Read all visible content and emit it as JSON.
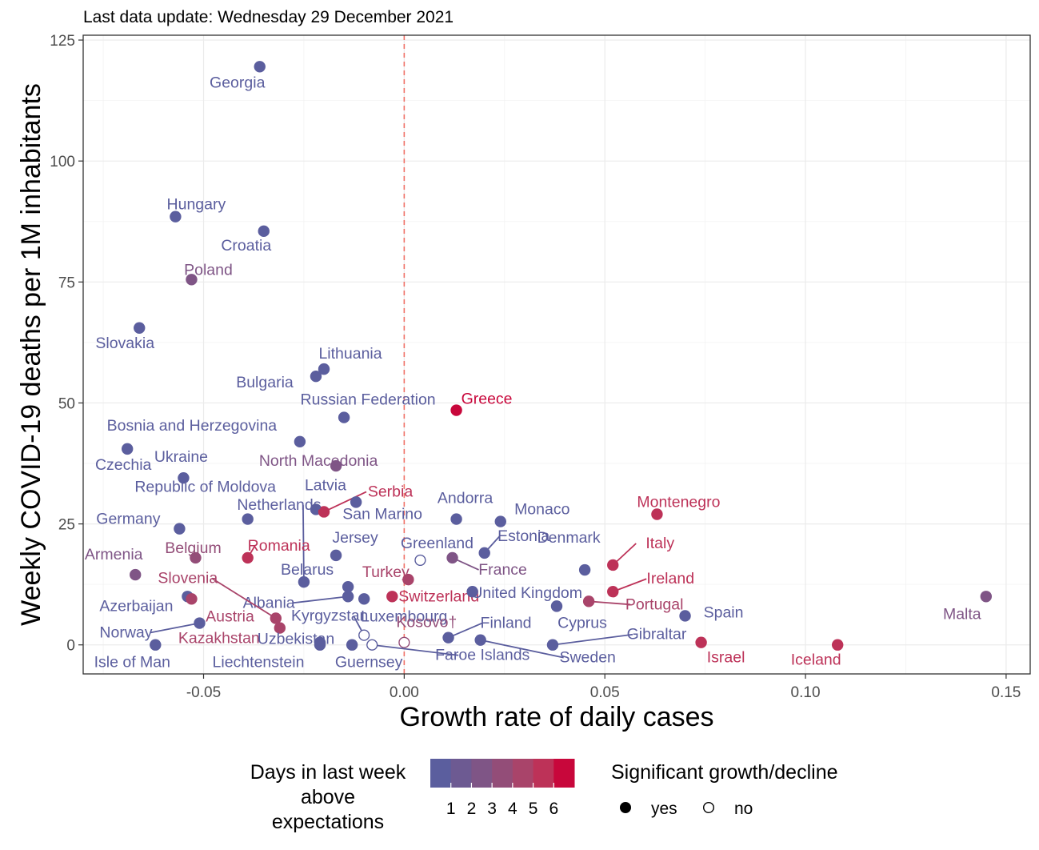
{
  "update_text": "Last data update: Wednesday 29 December 2021",
  "colors": {
    "scale": [
      "#5b5e9e",
      "#6d5a92",
      "#7f5586",
      "#934d78",
      "#a9446a",
      "#bd3258",
      "#c8073b"
    ],
    "reference_line": "#f07167"
  },
  "legend": {
    "color_title": [
      "Days in last week",
      "above",
      "expectations"
    ],
    "color_ticks": [
      "1",
      "2",
      "3",
      "4",
      "5",
      "6"
    ],
    "shape_title": "Significant growth/decline",
    "shape_items": [
      {
        "label": "yes",
        "filled": true
      },
      {
        "label": "no",
        "filled": false
      }
    ]
  },
  "chart_data": {
    "type": "scatter",
    "xlabel": "Growth rate of daily cases",
    "ylabel": "Weekly COVID-19 deaths per 1M inhabitants",
    "xlim": [
      -0.08,
      0.156
    ],
    "ylim": [
      -6,
      126
    ],
    "x_ticks": [
      -0.05,
      0.0,
      0.05,
      0.1,
      0.15
    ],
    "x_tick_labels": [
      "-0.05",
      "0.00",
      "0.05",
      "0.10",
      "0.15"
    ],
    "y_ticks": [
      0,
      25,
      50,
      75,
      100,
      125
    ],
    "y_tick_labels": [
      "0",
      "25",
      "50",
      "75",
      "100",
      "125"
    ],
    "reference_x": 0,
    "grid": true,
    "points": [
      {
        "name": "Georgia",
        "x": -0.036,
        "y": 119.5,
        "days": 0,
        "sig": true
      },
      {
        "name": "Hungary",
        "x": -0.057,
        "y": 88.5,
        "days": 0,
        "sig": true
      },
      {
        "name": "Croatia",
        "x": -0.035,
        "y": 85.5,
        "days": 0,
        "sig": true
      },
      {
        "name": "Poland",
        "x": -0.053,
        "y": 75.5,
        "days": 2,
        "sig": true
      },
      {
        "name": "Slovakia",
        "x": -0.066,
        "y": 65.5,
        "days": 0,
        "sig": true
      },
      {
        "name": "Lithuania",
        "x": -0.02,
        "y": 57.0,
        "days": 0,
        "sig": true
      },
      {
        "name": "Bulgaria",
        "x": -0.022,
        "y": 55.5,
        "days": 0,
        "sig": true
      },
      {
        "name": "Russian Federation",
        "x": -0.015,
        "y": 47.0,
        "days": 0,
        "sig": true
      },
      {
        "name": "Greece",
        "x": 0.013,
        "y": 48.5,
        "days": 6,
        "sig": true
      },
      {
        "name": "Bosnia and Herzegovina",
        "x": -0.026,
        "y": 42.0,
        "days": 0,
        "sig": true
      },
      {
        "name": "Czechia",
        "x": -0.069,
        "y": 40.5,
        "days": 0,
        "sig": true
      },
      {
        "name": "North Macedonia",
        "x": -0.017,
        "y": 37.0,
        "days": 2,
        "sig": true
      },
      {
        "name": "Ukraine",
        "x": -0.055,
        "y": 34.5,
        "days": 0,
        "sig": true
      },
      {
        "name": "Latvia",
        "x": -0.022,
        "y": 28.0,
        "days": 0,
        "sig": true
      },
      {
        "name": "Serbia",
        "x": -0.02,
        "y": 27.5,
        "days": 5,
        "sig": true
      },
      {
        "name": "San Marino",
        "x": -0.012,
        "y": 29.5,
        "days": 0,
        "sig": true
      },
      {
        "name": "Republic of Moldova",
        "x": -0.039,
        "y": 26.0,
        "days": 0,
        "sig": true
      },
      {
        "name": "Andorra",
        "x": 0.013,
        "y": 26.0,
        "days": 0,
        "sig": true
      },
      {
        "name": "Monaco",
        "x": 0.024,
        "y": 25.5,
        "days": 0,
        "sig": true
      },
      {
        "name": "Montenegro",
        "x": 0.063,
        "y": 27.0,
        "days": 5,
        "sig": true
      },
      {
        "name": "Germany",
        "x": -0.056,
        "y": 24.0,
        "days": 0,
        "sig": true
      },
      {
        "name": "Netherlands",
        "x": -0.025,
        "y": 13.0,
        "days": 0,
        "sig": true
      },
      {
        "name": "Estonia",
        "x": 0.02,
        "y": 19.0,
        "days": 0,
        "sig": true
      },
      {
        "name": "Jersey",
        "x": -0.017,
        "y": 18.5,
        "days": 0,
        "sig": true
      },
      {
        "name": "Greenland",
        "x": 0.004,
        "y": 17.5,
        "days": 0,
        "sig": false
      },
      {
        "name": "Romania",
        "x": -0.039,
        "y": 18.0,
        "days": 5,
        "sig": true
      },
      {
        "name": "Belgium",
        "x": -0.052,
        "y": 18.0,
        "days": 3,
        "sig": true
      },
      {
        "name": "France",
        "x": 0.012,
        "y": 18.0,
        "days": 2,
        "sig": true
      },
      {
        "name": "Denmark",
        "x": 0.045,
        "y": 15.5,
        "days": 0,
        "sig": true
      },
      {
        "name": "Italy",
        "x": 0.052,
        "y": 16.5,
        "days": 5,
        "sig": true
      },
      {
        "name": "Armenia",
        "x": -0.067,
        "y": 14.5,
        "days": 2,
        "sig": true
      },
      {
        "name": "Turkey",
        "x": 0.001,
        "y": 13.5,
        "days": 4,
        "sig": true
      },
      {
        "name": "Ireland",
        "x": 0.052,
        "y": 11.0,
        "days": 5,
        "sig": true
      },
      {
        "name": "Belarus",
        "x": -0.014,
        "y": 12.0,
        "days": 0,
        "sig": true
      },
      {
        "name": "Albania",
        "x": -0.014,
        "y": 10.0,
        "days": 0,
        "sig": true
      },
      {
        "name": "Slovenia",
        "x": -0.032,
        "y": 5.5,
        "days": 4,
        "sig": true
      },
      {
        "name": "Switzerland",
        "x": -0.003,
        "y": 10.0,
        "days": 5,
        "sig": true
      },
      {
        "name": "United Kingdom",
        "x": 0.017,
        "y": 11.0,
        "days": 0,
        "sig": true
      },
      {
        "name": "Portugal",
        "x": 0.046,
        "y": 9.0,
        "days": 4,
        "sig": true
      },
      {
        "name": "Malta",
        "x": 0.145,
        "y": 10.0,
        "days": 2,
        "sig": true
      },
      {
        "name": "Azerbaijan",
        "x": -0.054,
        "y": 10.0,
        "days": 0,
        "sig": true
      },
      {
        "name": "Austria",
        "x": -0.053,
        "y": 9.5,
        "days": 4,
        "sig": true
      },
      {
        "name": "Luxembourg",
        "x": -0.01,
        "y": 9.5,
        "days": 0,
        "sig": true
      },
      {
        "name": "Cyprus",
        "x": 0.038,
        "y": 8.0,
        "days": 0,
        "sig": true
      },
      {
        "name": "Spain",
        "x": 0.07,
        "y": 6.0,
        "days": 0,
        "sig": true
      },
      {
        "name": "Kyrgyzstan",
        "x": -0.01,
        "y": 2.0,
        "days": 0,
        "sig": false
      },
      {
        "name": "Norway",
        "x": -0.051,
        "y": 4.5,
        "days": 0,
        "sig": true
      },
      {
        "name": "Kazakhstan",
        "x": -0.031,
        "y": 3.5,
        "days": 4,
        "sig": true
      },
      {
        "name": "Kosovo†",
        "x": 0.0,
        "y": 0.5,
        "days": 3,
        "sig": false
      },
      {
        "name": "Finland",
        "x": 0.011,
        "y": 1.5,
        "days": 0,
        "sig": true
      },
      {
        "name": "Uzbekistan",
        "x": -0.021,
        "y": 0.5,
        "days": 0,
        "sig": true
      },
      {
        "name": "Liechtenstein",
        "x": -0.021,
        "y": 0.0,
        "days": 0,
        "sig": true
      },
      {
        "name": "Guernsey",
        "x": -0.013,
        "y": 0.0,
        "days": 0,
        "sig": true
      },
      {
        "name": "Faroe Islands",
        "x": -0.008,
        "y": 0.0,
        "days": 0,
        "sig": false
      },
      {
        "name": "Isle of Man",
        "x": -0.062,
        "y": 0.0,
        "days": 0,
        "sig": true
      },
      {
        "name": "Gibraltar",
        "x": 0.037,
        "y": 0.0,
        "days": 0,
        "sig": true
      },
      {
        "name": "Sweden",
        "x": 0.019,
        "y": 1.0,
        "days": 0,
        "sig": true
      },
      {
        "name": "Israel",
        "x": 0.074,
        "y": 0.5,
        "days": 5,
        "sig": true
      },
      {
        "name": "Iceland",
        "x": 0.108,
        "y": 0.0,
        "days": 5,
        "sig": true
      }
    ]
  }
}
